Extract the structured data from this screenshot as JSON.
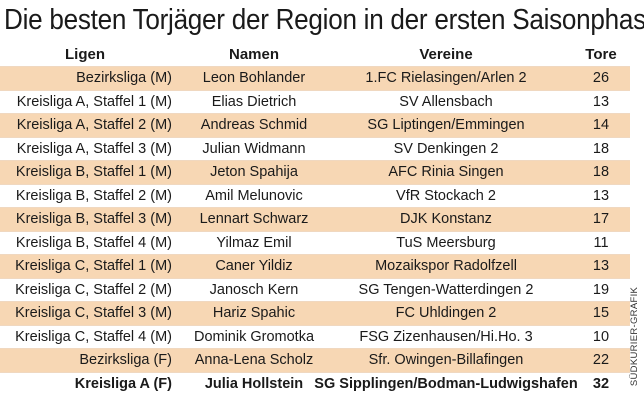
{
  "title": "Die besten Torjäger der Region in der ersten Saisonphase",
  "columns": {
    "liga": "Ligen",
    "name": "Namen",
    "verein": "Vereine",
    "tore": "Tore"
  },
  "rows": [
    {
      "liga": "Bezirksliga (M)",
      "name": "Leon Bohlander",
      "verein": "1.FC Rielasingen/Arlen 2",
      "tore": "26"
    },
    {
      "liga": "Kreisliga A, Staffel 1 (M)",
      "name": "Elias Dietrich",
      "verein": "SV Allensbach",
      "tore": "13"
    },
    {
      "liga": "Kreisliga A, Staffel 2 (M)",
      "name": "Andreas Schmid",
      "verein": "SG Liptingen/Emmingen",
      "tore": "14"
    },
    {
      "liga": "Kreisliga A, Staffel 3 (M)",
      "name": "Julian Widmann",
      "verein": "SV Denkingen 2",
      "tore": "18"
    },
    {
      "liga": "Kreisliga B, Staffel 1 (M)",
      "name": "Jeton Spahija",
      "verein": "AFC Rinia Singen",
      "tore": "18"
    },
    {
      "liga": "Kreisliga B, Staffel 2 (M)",
      "name": "Amil Melunovic",
      "verein": "VfR Stockach 2",
      "tore": "13"
    },
    {
      "liga": "Kreisliga B, Staffel 3 (M)",
      "name": "Lennart Schwarz",
      "verein": "DJK Konstanz",
      "tore": "17"
    },
    {
      "liga": "Kreisliga B, Staffel 4 (M)",
      "name": "Yilmaz Emil",
      "verein": "TuS Meersburg",
      "tore": "11"
    },
    {
      "liga": "Kreisliga C, Staffel 1 (M)",
      "name": "Caner Yildiz",
      "verein": "Mozaikspor Radolfzell",
      "tore": "13"
    },
    {
      "liga": "Kreisliga C, Staffel 2 (M)",
      "name": "Janosch Kern",
      "verein": "SG Tengen-Watterdingen 2",
      "tore": "19"
    },
    {
      "liga": "Kreisliga C, Staffel 3 (M)",
      "name": "Hariz Spahic",
      "verein": "FC Uhldingen 2",
      "tore": "15"
    },
    {
      "liga": "Kreisliga C, Staffel 4 (M)",
      "name": "Dominik Gromotka",
      "verein": "FSG Zizenhausen/Hi.Ho. 3",
      "tore": "10"
    },
    {
      "liga": "Bezirksliga (F)",
      "name": "Anna-Lena Scholz",
      "verein": "Sfr. Owingen-Billafingen",
      "tore": "22"
    },
    {
      "liga": "Kreisliga A (F)",
      "name": "Julia Hollstein",
      "verein": "SG Sipplingen/Bodman-Ludwigshafen",
      "tore": "32"
    }
  ],
  "shaded_rows": [
    0,
    2,
    4,
    6,
    8,
    10,
    12
  ],
  "colors": {
    "shade": "#f7d7b4",
    "text": "#1a1a1a"
  },
  "credit": "SÜDKURIER-GRAFIK"
}
